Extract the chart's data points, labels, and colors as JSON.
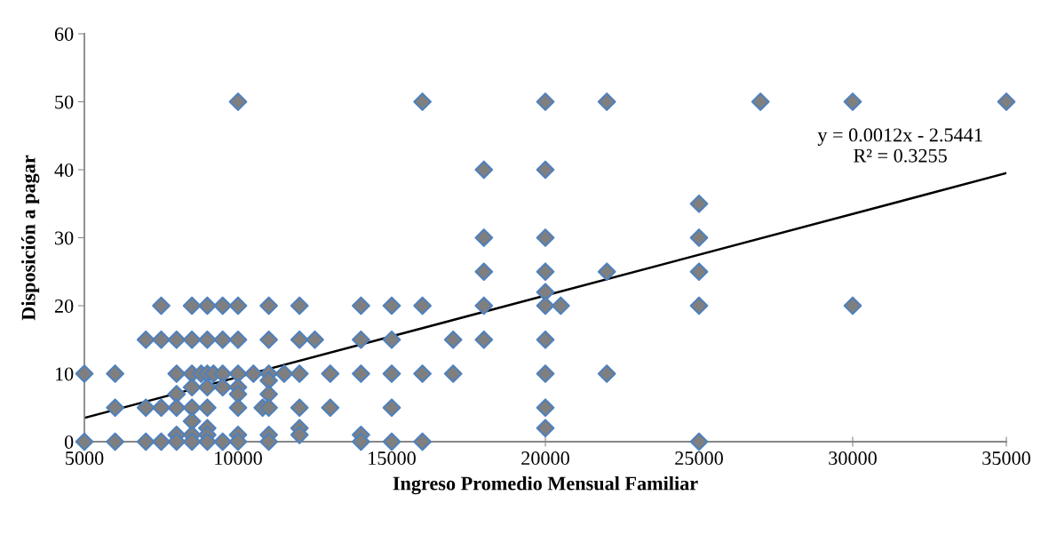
{
  "chart_data": {
    "type": "scatter",
    "xlabel": "Ingreso Promedio Mensual Familiar",
    "ylabel": "Disposición a pagar",
    "xlim": [
      5000,
      35000
    ],
    "ylim": [
      0,
      60
    ],
    "xticks": [
      5000,
      10000,
      15000,
      20000,
      25000,
      30000,
      35000
    ],
    "yticks": [
      0,
      10,
      20,
      30,
      40,
      50,
      60
    ],
    "grid": false,
    "series": [
      {
        "color": "#7f7f7f",
        "marker": "diamond",
        "x": [
          10000,
          16000,
          20000,
          22000,
          27000,
          30000,
          35000,
          18000,
          20000,
          25000,
          18000,
          20000,
          25000,
          18000,
          20000,
          22000,
          25000,
          20000,
          7500,
          8500,
          9000,
          9500,
          10000,
          11000,
          12000,
          14000,
          15000,
          16000,
          18000,
          20000,
          20500,
          25000,
          30000,
          7000,
          7500,
          8000,
          8500,
          9000,
          9500,
          10000,
          11000,
          12000,
          12500,
          14000,
          15000,
          17000,
          18000,
          20000,
          5000,
          6000,
          8000,
          8500,
          8800,
          9000,
          9200,
          9500,
          10000,
          10500,
          11000,
          11500,
          12000,
          13000,
          14000,
          15000,
          16000,
          17000,
          20000,
          22000,
          8000,
          8500,
          9000,
          9500,
          10000,
          10000,
          11000,
          11000,
          6000,
          7000,
          7500,
          8000,
          8500,
          9000,
          10000,
          10800,
          11000,
          12000,
          13000,
          15000,
          20000,
          8500,
          9000,
          12000,
          20000,
          8000,
          8500,
          9000,
          10000,
          11000,
          12000,
          14000,
          5000,
          6000,
          7000,
          7500,
          8000,
          8500,
          9000,
          9500,
          10000,
          11000,
          14000,
          15000,
          16000,
          25000
        ],
        "values": [
          50,
          50,
          50,
          50,
          50,
          50,
          50,
          40,
          40,
          35,
          30,
          30,
          30,
          25,
          25,
          25,
          25,
          22,
          20,
          20,
          20,
          20,
          20,
          20,
          20,
          20,
          20,
          20,
          20,
          20,
          20,
          20,
          20,
          15,
          15,
          15,
          15,
          15,
          15,
          15,
          15,
          15,
          15,
          15,
          15,
          15,
          15,
          15,
          10,
          10,
          10,
          10,
          10,
          10,
          10,
          10,
          10,
          10,
          10,
          10,
          10,
          10,
          10,
          10,
          10,
          10,
          10,
          10,
          7,
          8,
          8,
          8,
          8,
          7,
          9,
          7,
          5,
          5,
          5,
          5,
          5,
          5,
          5,
          5,
          5,
          5,
          5,
          5,
          5,
          3,
          2,
          2,
          2,
          1,
          1,
          1,
          1,
          1,
          1,
          1,
          0,
          0,
          0,
          0,
          0,
          0,
          0,
          0,
          0,
          0,
          0,
          0,
          0,
          0
        ]
      },
      {
        "type": "line",
        "color": "#000000",
        "marker": "none",
        "x": [
          5000,
          35000
        ],
        "values": [
          3.5,
          39.5
        ]
      }
    ],
    "annotations": [
      "y = 0.0012x - 2.5441\nR² = 0.3255"
    ],
    "legend": false
  }
}
